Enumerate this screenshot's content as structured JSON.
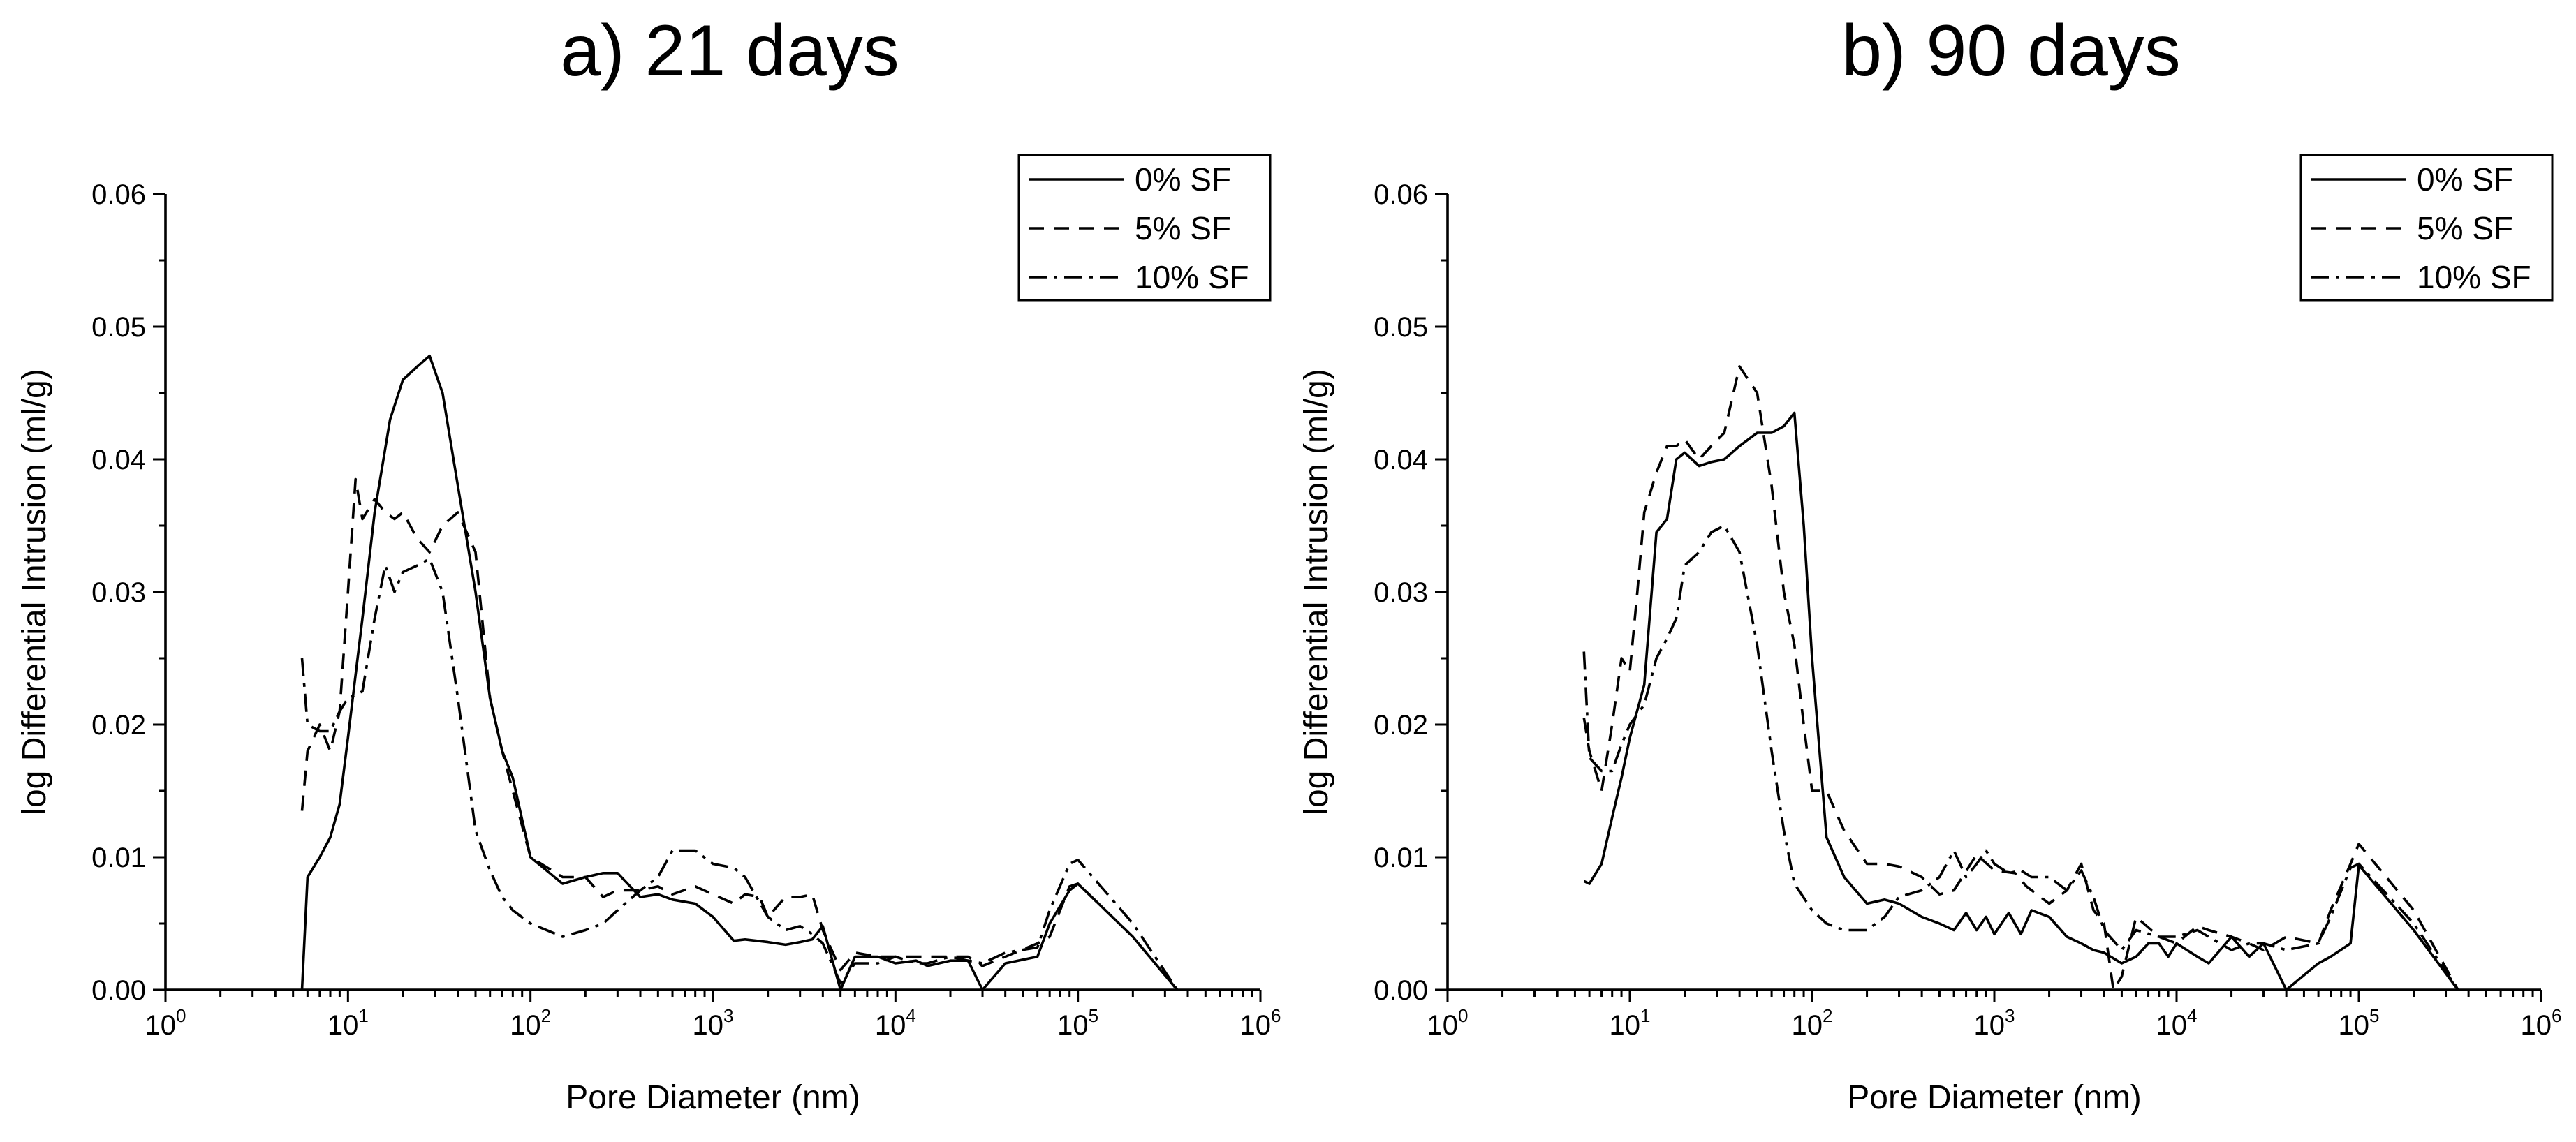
{
  "chart_data": [
    {
      "type": "line",
      "title": "a) 21 days",
      "xlabel": "Pore Diameter (nm)",
      "ylabel": "log Differential Intrusion (ml/g)",
      "xscale": "log",
      "xlim": [
        1,
        1000000
      ],
      "ylim": [
        0,
        0.06
      ],
      "xticks": [
        {
          "base": "10",
          "exp": "0"
        },
        {
          "base": "10",
          "exp": "1"
        },
        {
          "base": "10",
          "exp": "2"
        },
        {
          "base": "10",
          "exp": "3"
        },
        {
          "base": "10",
          "exp": "4"
        },
        {
          "base": "10",
          "exp": "5"
        },
        {
          "base": "10",
          "exp": "6"
        }
      ],
      "yticks": [
        "0.00",
        "0.01",
        "0.02",
        "0.03",
        "0.04",
        "0.05",
        "0.06"
      ],
      "legend_position": "top-right",
      "series": [
        {
          "name": "0% SF",
          "style": "solid",
          "x": [
            5.6,
            6,
            7,
            8,
            9,
            10,
            12,
            14,
            17,
            20,
            24,
            28,
            33,
            40,
            50,
            60,
            70,
            80,
            100,
            150,
            200,
            250,
            300,
            400,
            500,
            600,
            800,
            1000,
            1300,
            1500,
            2000,
            2500,
            3000,
            3500,
            4000,
            5000,
            6000,
            8000,
            10000,
            13000,
            15000,
            20000,
            25000,
            30000,
            40000,
            60000,
            70000,
            90000,
            100000,
            200000,
            350000
          ],
          "y": [
            0.0,
            0.0085,
            0.01,
            0.0115,
            0.014,
            0.019,
            0.028,
            0.036,
            0.043,
            0.046,
            0.047,
            0.0478,
            0.045,
            0.038,
            0.03,
            0.022,
            0.018,
            0.016,
            0.01,
            0.008,
            0.0085,
            0.0088,
            0.0088,
            0.007,
            0.0072,
            0.0068,
            0.0065,
            0.0055,
            0.0037,
            0.0038,
            0.0036,
            0.0034,
            0.0036,
            0.0038,
            0.0048,
            0.0,
            0.0025,
            0.0025,
            0.002,
            0.0022,
            0.0018,
            0.0022,
            0.0022,
            0.0,
            0.002,
            0.0025,
            0.005,
            0.0075,
            0.008,
            0.004,
            0.0
          ]
        },
        {
          "name": "5% SF",
          "style": "dash",
          "x": [
            5.6,
            6,
            7,
            8,
            9,
            10,
            11,
            12,
            14,
            16,
            18,
            20,
            24,
            28,
            33,
            40,
            50,
            60,
            70,
            80,
            100,
            150,
            200,
            250,
            300,
            400,
            500,
            600,
            800,
            1000,
            1300,
            1500,
            1800,
            2000,
            2500,
            3000,
            3500,
            4000,
            5000,
            6000,
            8000,
            10000,
            13000,
            15000,
            20000,
            25000,
            30000,
            40000,
            60000,
            70000,
            90000,
            100000,
            200000,
            350000
          ],
          "y": [
            0.0135,
            0.018,
            0.02,
            0.018,
            0.021,
            0.03,
            0.0385,
            0.0355,
            0.037,
            0.036,
            0.0355,
            0.036,
            0.034,
            0.033,
            0.035,
            0.036,
            0.033,
            0.022,
            0.018,
            0.015,
            0.01,
            0.0085,
            0.0085,
            0.007,
            0.0075,
            0.0075,
            0.0078,
            0.0072,
            0.0078,
            0.0072,
            0.0065,
            0.0072,
            0.007,
            0.0055,
            0.007,
            0.007,
            0.0072,
            0.0045,
            0.0015,
            0.0028,
            0.0025,
            0.0025,
            0.0025,
            0.0025,
            0.0025,
            0.0025,
            0.0018,
            0.0025,
            0.0035,
            0.004,
            0.0078,
            0.008,
            0.004,
            0.0
          ]
        },
        {
          "name": "10% SF",
          "style": "dashdot",
          "x": [
            5.6,
            6,
            7,
            8,
            9,
            10,
            12,
            14,
            16,
            18,
            20,
            24,
            28,
            33,
            40,
            50,
            60,
            70,
            80,
            100,
            150,
            200,
            250,
            300,
            400,
            500,
            600,
            800,
            1000,
            1300,
            1500,
            2000,
            2500,
            3000,
            3500,
            4000,
            5000,
            6000,
            8000,
            10000,
            13000,
            15000,
            20000,
            25000,
            30000,
            40000,
            60000,
            70000,
            90000,
            100000,
            200000,
            350000
          ],
          "y": [
            0.025,
            0.02,
            0.0195,
            0.0195,
            0.021,
            0.022,
            0.0225,
            0.028,
            0.032,
            0.03,
            0.0315,
            0.032,
            0.0325,
            0.03,
            0.022,
            0.012,
            0.009,
            0.007,
            0.006,
            0.005,
            0.004,
            0.0045,
            0.005,
            0.006,
            0.0075,
            0.0085,
            0.0105,
            0.0105,
            0.0095,
            0.0092,
            0.0085,
            0.0055,
            0.0045,
            0.0048,
            0.0042,
            0.0035,
            0.0005,
            0.002,
            0.002,
            0.0025,
            0.002,
            0.002,
            0.0025,
            0.0022,
            0.002,
            0.0028,
            0.0032,
            0.006,
            0.0095,
            0.0098,
            0.005,
            0.0
          ]
        }
      ]
    },
    {
      "type": "line",
      "title": "b) 90 days",
      "xlabel": "Pore Diameter (nm)",
      "ylabel": "log Differential Intrusion (ml/g)",
      "xscale": "log",
      "xlim": [
        1,
        1000000
      ],
      "ylim": [
        0,
        0.06
      ],
      "xticks": [
        {
          "base": "10",
          "exp": "0"
        },
        {
          "base": "10",
          "exp": "1"
        },
        {
          "base": "10",
          "exp": "2"
        },
        {
          "base": "10",
          "exp": "3"
        },
        {
          "base": "10",
          "exp": "4"
        },
        {
          "base": "10",
          "exp": "5"
        },
        {
          "base": "10",
          "exp": "6"
        }
      ],
      "yticks": [
        "0.00",
        "0.01",
        "0.02",
        "0.03",
        "0.04",
        "0.05",
        "0.06"
      ],
      "legend_position": "top-right",
      "series": [
        {
          "name": "0% SF",
          "style": "solid",
          "x": [
            5.6,
            6,
            7,
            8,
            9,
            10,
            12,
            14,
            16,
            18,
            20,
            24,
            28,
            33,
            40,
            50,
            60,
            70,
            80,
            90,
            100,
            120,
            150,
            200,
            250,
            300,
            400,
            500,
            600,
            700,
            800,
            900,
            1000,
            1200,
            1400,
            1600,
            2000,
            2500,
            3000,
            3500,
            4000,
            5000,
            6000,
            7000,
            8000,
            9000,
            10000,
            13000,
            15000,
            20000,
            25000,
            30000,
            40000,
            60000,
            70000,
            90000,
            100000,
            200000,
            350000
          ],
          "y": [
            0.0082,
            0.008,
            0.0095,
            0.013,
            0.016,
            0.019,
            0.023,
            0.0345,
            0.0355,
            0.04,
            0.0405,
            0.0395,
            0.0398,
            0.04,
            0.041,
            0.042,
            0.042,
            0.0425,
            0.0435,
            0.035,
            0.025,
            0.0115,
            0.0085,
            0.0065,
            0.0068,
            0.0065,
            0.0055,
            0.005,
            0.0045,
            0.0058,
            0.0045,
            0.0055,
            0.0042,
            0.0058,
            0.0042,
            0.006,
            0.0055,
            0.004,
            0.0035,
            0.003,
            0.0028,
            0.002,
            0.0025,
            0.0035,
            0.0035,
            0.0025,
            0.0035,
            0.0025,
            0.002,
            0.004,
            0.0025,
            0.0035,
            0.0,
            0.002,
            0.0025,
            0.0035,
            0.0094,
            0.0045,
            0.0
          ]
        },
        {
          "name": "5% SF",
          "style": "dash",
          "x": [
            5.6,
            6,
            7,
            8,
            9,
            10,
            11,
            12,
            14,
            16,
            18,
            20,
            24,
            28,
            33,
            40,
            50,
            60,
            70,
            80,
            90,
            100,
            120,
            150,
            200,
            250,
            300,
            400,
            500,
            600,
            800,
            1000,
            1300,
            1500,
            2000,
            2500,
            3000,
            3500,
            4000,
            4500,
            5000,
            6000,
            8000,
            10000,
            13000,
            15000,
            20000,
            25000,
            30000,
            40000,
            60000,
            70000,
            90000,
            100000,
            200000,
            350000
          ],
          "y": [
            0.0205,
            0.018,
            0.015,
            0.02,
            0.025,
            0.024,
            0.03,
            0.036,
            0.039,
            0.041,
            0.041,
            0.0415,
            0.04,
            0.041,
            0.042,
            0.047,
            0.045,
            0.038,
            0.03,
            0.026,
            0.02,
            0.015,
            0.015,
            0.012,
            0.0095,
            0.0095,
            0.0093,
            0.0085,
            0.0072,
            0.0075,
            0.0102,
            0.009,
            0.0088,
            0.0078,
            0.0065,
            0.0075,
            0.0095,
            0.006,
            0.005,
            0.0,
            0.001,
            0.0055,
            0.004,
            0.0035,
            0.0048,
            0.0045,
            0.004,
            0.0035,
            0.003,
            0.004,
            0.0035,
            0.006,
            0.0095,
            0.011,
            0.006,
            0.0
          ]
        },
        {
          "name": "10% SF",
          "style": "dashdot",
          "x": [
            5.6,
            6,
            7,
            8,
            9,
            10,
            12,
            14,
            16,
            18,
            20,
            24,
            28,
            33,
            40,
            50,
            60,
            70,
            80,
            100,
            120,
            150,
            200,
            250,
            300,
            400,
            500,
            600,
            700,
            800,
            900,
            1000,
            1200,
            1400,
            1600,
            2000,
            2500,
            3000,
            3500,
            4000,
            5000,
            6000,
            8000,
            10000,
            13000,
            15000,
            20000,
            25000,
            30000,
            40000,
            60000,
            70000,
            90000,
            100000,
            200000,
            350000
          ],
          "y": [
            0.0255,
            0.0175,
            0.0165,
            0.0165,
            0.0185,
            0.02,
            0.0215,
            0.025,
            0.0265,
            0.028,
            0.032,
            0.033,
            0.0345,
            0.035,
            0.033,
            0.026,
            0.018,
            0.012,
            0.008,
            0.006,
            0.005,
            0.0045,
            0.0045,
            0.0055,
            0.007,
            0.0075,
            0.0085,
            0.0105,
            0.0085,
            0.0095,
            0.0105,
            0.0095,
            0.0088,
            0.009,
            0.0085,
            0.0085,
            0.0075,
            0.009,
            0.007,
            0.0045,
            0.003,
            0.0045,
            0.004,
            0.004,
            0.0045,
            0.004,
            0.003,
            0.0035,
            0.0035,
            0.003,
            0.0035,
            0.0055,
            0.0092,
            0.0095,
            0.005,
            0.0
          ]
        }
      ]
    }
  ]
}
